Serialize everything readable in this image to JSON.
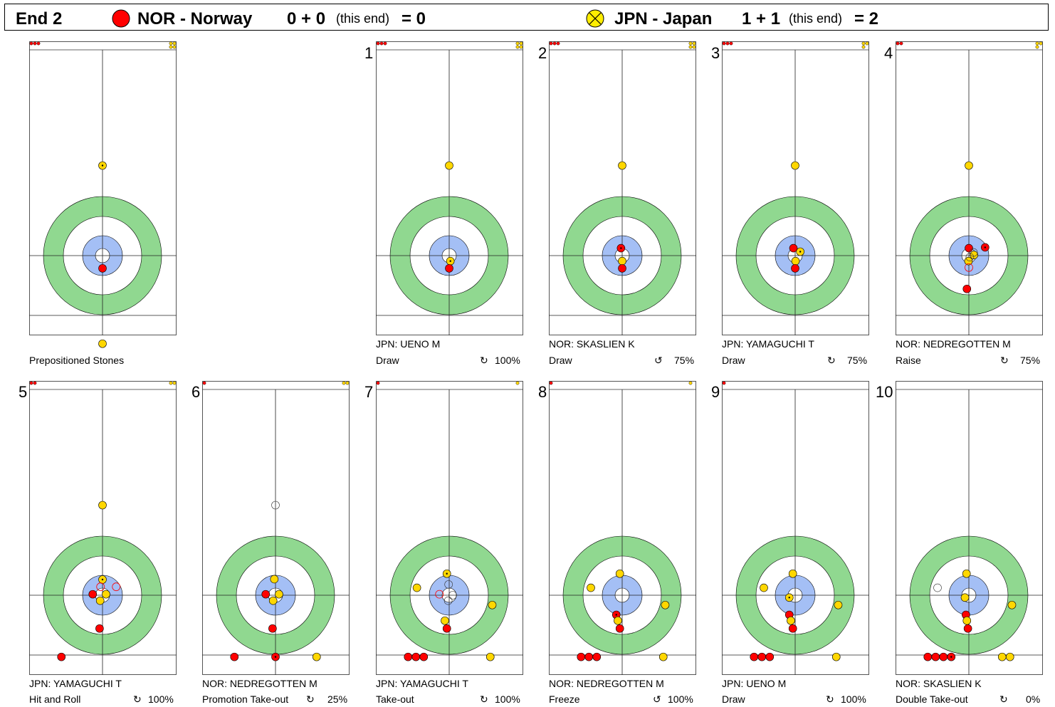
{
  "header": {
    "end_label": "End 2",
    "team1": {
      "name": "NOR - Norway",
      "score_expr": "0 + 0",
      "this_end": "(this end)",
      "total": "= 0",
      "color": "#ff0000"
    },
    "team2": {
      "name": "JPN - Japan",
      "score_expr": "1 + 1",
      "this_end": "(this end)",
      "total": "= 2",
      "color": "#ffee00"
    }
  },
  "colors": {
    "red": "#ff0000",
    "yellow": "#ffd700",
    "ring12": "#90d890",
    "ring4": "#a4bff5"
  },
  "sheets": [
    {
      "num": "",
      "player": "",
      "shot": "Prepositioned Stones",
      "rot": "",
      "pct": "",
      "res_red": 3,
      "res_yellow": 4,
      "stones": [
        [
          "y",
          0,
          -4.6,
          1
        ],
        [
          "y",
          0,
          4.5,
          0
        ],
        [
          "r",
          0,
          0.65,
          0
        ]
      ]
    },
    {
      "num": "1",
      "player": "JPN: UENO M",
      "shot": "Draw",
      "rot": "↻",
      "pct": "100%",
      "res_red": 3,
      "res_yellow": 4,
      "stones": [
        [
          "y",
          0,
          -4.6,
          0
        ],
        [
          "y",
          0.06,
          0.28,
          1
        ],
        [
          "r",
          0,
          0.65,
          0
        ]
      ]
    },
    {
      "num": "2",
      "player": "NOR: SKASLIEN K",
      "shot": "Draw",
      "rot": "↺",
      "pct": "75%",
      "res_red": 3,
      "res_yellow": 4,
      "stones": [
        [
          "y",
          0,
          -4.6,
          0
        ],
        [
          "r",
          -0.06,
          -0.38,
          1
        ],
        [
          "y",
          0,
          0.28,
          0
        ],
        [
          "r",
          0,
          0.65,
          0
        ]
      ]
    },
    {
      "num": "3",
      "player": "JPN: YAMAGUCHI T",
      "shot": "Draw",
      "rot": "↻",
      "pct": "75%",
      "res_red": 3,
      "res_yellow": 3,
      "stones": [
        [
          "y",
          0,
          -4.6,
          0
        ],
        [
          "r",
          -0.09,
          -0.38,
          0
        ],
        [
          "y",
          0.26,
          -0.2,
          1
        ],
        [
          "y",
          0.02,
          0.28,
          0
        ],
        [
          "r",
          0,
          0.65,
          0
        ]
      ]
    },
    {
      "num": "4",
      "player": "NOR: NEDREGOTTEN M",
      "shot": "Raise",
      "rot": "↻",
      "pct": "75%",
      "res_red": 2,
      "res_yellow": 3,
      "stones": [
        [
          "y",
          0,
          -4.6,
          0
        ],
        [
          "r",
          0.83,
          -0.42,
          1
        ],
        [
          "r",
          0,
          -0.38,
          0
        ],
        [
          "y",
          0.26,
          -0.03,
          0
        ],
        [
          "y",
          -0.02,
          0.28,
          0
        ],
        [
          "r",
          -0.1,
          1.7,
          0
        ],
        [
          "rg",
          0,
          0.61,
          0
        ],
        [
          "kg",
          0.24,
          -0.16,
          0
        ],
        [
          "kg",
          0.05,
          0.08,
          0
        ]
      ]
    },
    {
      "num": "5",
      "player": "JPN: YAMAGUCHI T",
      "shot": "Hit and Roll",
      "rot": "↻",
      "pct": "100%",
      "res_red": 2,
      "res_yellow": 2,
      "stones": [
        [
          "y",
          0,
          -4.6,
          0
        ],
        [
          "y",
          0,
          -0.8,
          1
        ],
        [
          "r",
          -0.5,
          -0.05,
          0
        ],
        [
          "y",
          0.18,
          -0.05,
          0
        ],
        [
          "y",
          -0.12,
          0.28,
          0
        ],
        [
          "r",
          -0.15,
          1.7,
          0
        ],
        [
          "rg",
          -0.1,
          -0.43,
          0
        ],
        [
          "rg",
          0.7,
          -0.43,
          0
        ],
        [
          "r",
          -2.1,
          3.15,
          0
        ]
      ]
    },
    {
      "num": "6",
      "player": "NOR: NEDREGOTTEN M",
      "shot": "Promotion Take-out",
      "rot": "↻",
      "pct": "25%",
      "res_red": 1,
      "res_yellow": 2,
      "stones": [
        [
          "kg",
          0,
          -4.6,
          0
        ],
        [
          "y",
          -0.06,
          -0.82,
          0
        ],
        [
          "r",
          -0.5,
          -0.05,
          0
        ],
        [
          "y",
          0.18,
          -0.05,
          0
        ],
        [
          "y",
          -0.12,
          0.28,
          0
        ],
        [
          "r",
          -0.15,
          1.7,
          0
        ],
        [
          "r",
          -2.1,
          3.15,
          0
        ],
        [
          "r",
          0,
          3.15,
          1
        ],
        [
          "y",
          2.1,
          3.15,
          0
        ]
      ]
    },
    {
      "num": "7",
      "player": "JPN: YAMAGUCHI T",
      "shot": "Take-out",
      "rot": "↻",
      "pct": "100%",
      "res_red": 1,
      "res_yellow": 1,
      "stones": [
        [
          "y",
          -1.65,
          -0.38,
          0
        ],
        [
          "y",
          -0.12,
          -1.1,
          1
        ],
        [
          "y",
          2.2,
          0.5,
          0
        ],
        [
          "y",
          -0.22,
          1.3,
          0
        ],
        [
          "r",
          -0.12,
          1.7,
          0
        ],
        [
          "rg",
          -0.5,
          -0.05,
          0
        ],
        [
          "kg",
          -0.03,
          -0.55,
          0
        ],
        [
          "kg",
          0.18,
          0,
          0
        ],
        [
          "kg",
          -0.05,
          0.28,
          0
        ],
        [
          "r",
          -2.1,
          3.15,
          0
        ],
        [
          "r",
          -1.7,
          3.15,
          0
        ],
        [
          "r",
          -1.3,
          3.15,
          0
        ],
        [
          "y",
          2.1,
          3.15,
          0
        ]
      ]
    },
    {
      "num": "8",
      "player": "NOR: NEDREGOTTEN M",
      "shot": "Freeze",
      "rot": "↺",
      "pct": "100%",
      "res_red": 1,
      "res_yellow": 1,
      "stones": [
        [
          "y",
          -1.6,
          -0.38,
          0
        ],
        [
          "y",
          -0.12,
          -1.1,
          0
        ],
        [
          "y",
          2.2,
          0.5,
          0
        ],
        [
          "r",
          -0.3,
          1.0,
          1
        ],
        [
          "y",
          -0.22,
          1.3,
          0
        ],
        [
          "r",
          -0.12,
          1.7,
          0
        ],
        [
          "r",
          -2.1,
          3.15,
          0
        ],
        [
          "r",
          -1.7,
          3.15,
          0
        ],
        [
          "r",
          -1.3,
          3.15,
          0
        ],
        [
          "y",
          2.1,
          3.15,
          0
        ]
      ]
    },
    {
      "num": "9",
      "player": "JPN: UENO M",
      "shot": "Draw",
      "rot": "↻",
      "pct": "100%",
      "res_red": 1,
      "res_yellow": 0,
      "stones": [
        [
          "y",
          -1.6,
          -0.38,
          0
        ],
        [
          "y",
          -0.12,
          -1.1,
          0
        ],
        [
          "y",
          2.2,
          0.5,
          0
        ],
        [
          "y",
          -0.3,
          0.12,
          1
        ],
        [
          "r",
          -0.3,
          1.0,
          0
        ],
        [
          "y",
          -0.22,
          1.3,
          0
        ],
        [
          "r",
          -0.12,
          1.7,
          0
        ],
        [
          "r",
          -2.1,
          3.15,
          0
        ],
        [
          "r",
          -1.7,
          3.15,
          0
        ],
        [
          "r",
          -1.3,
          3.15,
          0
        ],
        [
          "y",
          2.1,
          3.15,
          0
        ]
      ]
    },
    {
      "num": "10",
      "player": "NOR: SKASLIEN K",
      "shot": "Double Take-out",
      "rot": "↻",
      "pct": "0%",
      "res_red": 0,
      "res_yellow": 0,
      "stones": [
        [
          "kg",
          -1.6,
          -0.38,
          0
        ],
        [
          "y",
          -0.12,
          -1.1,
          0
        ],
        [
          "y",
          2.2,
          0.5,
          0
        ],
        [
          "y",
          -0.2,
          0.12,
          0
        ],
        [
          "r",
          -0.15,
          1.0,
          0
        ],
        [
          "y",
          -0.1,
          1.3,
          0
        ],
        [
          "r",
          -0.05,
          1.7,
          0
        ],
        [
          "r",
          -2.1,
          3.15,
          0
        ],
        [
          "r",
          -1.7,
          3.15,
          0
        ],
        [
          "r",
          -1.3,
          3.15,
          0
        ],
        [
          "r",
          -0.9,
          3.15,
          1
        ],
        [
          "y",
          1.7,
          3.15,
          0
        ],
        [
          "y",
          2.1,
          3.15,
          0
        ]
      ]
    }
  ]
}
